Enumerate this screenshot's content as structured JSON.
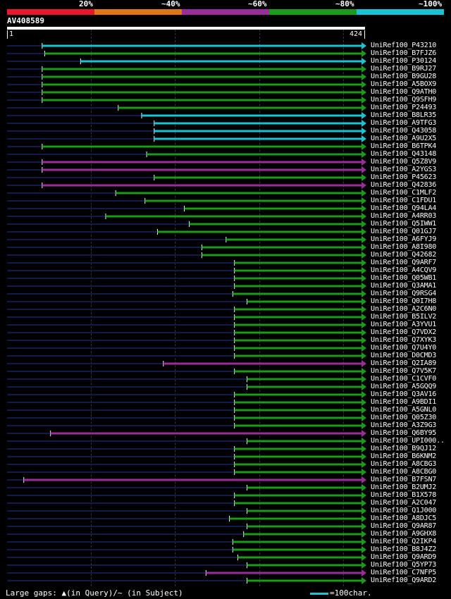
{
  "legend": {
    "items": [
      {
        "label": "20%",
        "color": "#e8172b"
      },
      {
        "label": "~40%",
        "color": "#e07617"
      },
      {
        "label": "~60%",
        "color": "#9b2d9b"
      },
      {
        "label": "~80%",
        "color": "#1a9c1a"
      },
      {
        "label": "~100%",
        "color": "#18c4d4"
      }
    ]
  },
  "query": {
    "name": "AV408589",
    "start_label": "1",
    "end_label": "424",
    "length": 424
  },
  "colors": {
    "background": "#000000",
    "faint_track": "#121a4a",
    "cyan": "#18c4d4",
    "green": "#1a9c1a",
    "purple": "#9b2d9b",
    "marker": "#ffff80"
  },
  "hits": [
    {
      "name": "UniRef100_P43210",
      "start": 42,
      "color": "cyan"
    },
    {
      "name": "UniRef100_B7FJZ6",
      "start": 45,
      "color": "green"
    },
    {
      "name": "UniRef100_P30124",
      "start": 88,
      "color": "cyan"
    },
    {
      "name": "UniRef100_B9RJ27",
      "start": 42,
      "color": "green"
    },
    {
      "name": "UniRef100_B9GU28",
      "start": 42,
      "color": "green"
    },
    {
      "name": "UniRef100_A5BOX9",
      "start": 42,
      "color": "green"
    },
    {
      "name": "UniRef100_Q9ATH0",
      "start": 42,
      "color": "green"
    },
    {
      "name": "UniRef100_Q9SFH9",
      "start": 42,
      "color": "green"
    },
    {
      "name": "UniRef100_P24493",
      "start": 133,
      "color": "green"
    },
    {
      "name": "UniRef100_B8LR35",
      "start": 161,
      "color": "cyan"
    },
    {
      "name": "UniRef100_A9TFG3",
      "start": 176,
      "color": "cyan"
    },
    {
      "name": "UniRef100_Q43058",
      "start": 176,
      "color": "cyan"
    },
    {
      "name": "UniRef100_A9U2X5",
      "start": 176,
      "color": "cyan"
    },
    {
      "name": "UniRef100_B6TPK4",
      "start": 42,
      "color": "green"
    },
    {
      "name": "UniRef100_Q43148",
      "start": 167,
      "color": "green"
    },
    {
      "name": "UniRef100_Q5Z8V9",
      "start": 42,
      "color": "purple"
    },
    {
      "name": "UniRef100_A2YGS3",
      "start": 42,
      "color": "purple"
    },
    {
      "name": "UniRef100_P45623",
      "start": 176,
      "color": "green"
    },
    {
      "name": "UniRef100_Q42836",
      "start": 42,
      "color": "purple"
    },
    {
      "name": "UniRef100_C1MLF2",
      "start": 130,
      "color": "green"
    },
    {
      "name": "UniRef100_C1FDU1",
      "start": 165,
      "color": "green"
    },
    {
      "name": "UniRef100_Q94LA4",
      "start": 212,
      "color": "green"
    },
    {
      "name": "UniRef100_A4RR03",
      "start": 118,
      "color": "green"
    },
    {
      "name": "UniRef100_Q5IWW1",
      "start": 218,
      "color": "green"
    },
    {
      "name": "UniRef100_Q01GJ7",
      "start": 180,
      "color": "green"
    },
    {
      "name": "UniRef100_A6FYJ9",
      "start": 262,
      "color": "green"
    },
    {
      "name": "UniRef100_A8I980",
      "start": 233,
      "color": "green"
    },
    {
      "name": "UniRef100_Q42682",
      "start": 233,
      "color": "green"
    },
    {
      "name": "UniRef100_Q9ARF7",
      "start": 272,
      "color": "green"
    },
    {
      "name": "UniRef100_A4CQV9",
      "start": 272,
      "color": "green"
    },
    {
      "name": "UniRef100_Q05WB1",
      "start": 272,
      "color": "green"
    },
    {
      "name": "UniRef100_Q3AMA1",
      "start": 272,
      "color": "green"
    },
    {
      "name": "UniRef100_Q9RSG4",
      "start": 270,
      "color": "green"
    },
    {
      "name": "UniRef100_Q0I7H8",
      "start": 287,
      "color": "green"
    },
    {
      "name": "UniRef100_A2C6N0",
      "start": 272,
      "color": "green"
    },
    {
      "name": "UniRef100_B5ILV2",
      "start": 272,
      "color": "green"
    },
    {
      "name": "UniRef100_A3YVU1",
      "start": 272,
      "color": "green"
    },
    {
      "name": "UniRef100_Q7VDX2",
      "start": 272,
      "color": "green"
    },
    {
      "name": "UniRef100_Q7XYK3",
      "start": 272,
      "color": "green"
    },
    {
      "name": "UniRef100_Q7U4Y0",
      "start": 272,
      "color": "green"
    },
    {
      "name": "UniRef100_D0CMD3",
      "start": 272,
      "color": "green"
    },
    {
      "name": "UniRef100_Q2IA89",
      "start": 187,
      "color": "purple"
    },
    {
      "name": "UniRef100_Q7V5K7",
      "start": 272,
      "color": "green"
    },
    {
      "name": "UniRef100_C1CVF0",
      "start": 287,
      "color": "green"
    },
    {
      "name": "UniRef100_A5GQQ9",
      "start": 287,
      "color": "green"
    },
    {
      "name": "UniRef100_Q3AV16",
      "start": 272,
      "color": "green"
    },
    {
      "name": "UniRef100_A9BDI1",
      "start": 272,
      "color": "green"
    },
    {
      "name": "UniRef100_A5GNL0",
      "start": 272,
      "color": "green"
    },
    {
      "name": "UniRef100_Q05Z30",
      "start": 272,
      "color": "green"
    },
    {
      "name": "UniRef100_A3Z9G3",
      "start": 272,
      "color": "green"
    },
    {
      "name": "UniRef100_Q6BY95",
      "start": 52,
      "color": "purple"
    },
    {
      "name": "UniRef100_UPI000..",
      "start": 287,
      "color": "green"
    },
    {
      "name": "UniRef100_B9QJ12",
      "start": 272,
      "color": "green"
    },
    {
      "name": "UniRef100_B6KNM2",
      "start": 272,
      "color": "green"
    },
    {
      "name": "UniRef100_A8CBG3",
      "start": 272,
      "color": "green"
    },
    {
      "name": "UniRef100_A8CBG0",
      "start": 272,
      "color": "green"
    },
    {
      "name": "UniRef100_B7FSN7",
      "start": 20,
      "color": "purple"
    },
    {
      "name": "UniRef100_B2UMJ2",
      "start": 287,
      "color": "green"
    },
    {
      "name": "UniRef100_B1X578",
      "start": 272,
      "color": "green"
    },
    {
      "name": "UniRef100_A2C047",
      "start": 272,
      "color": "green"
    },
    {
      "name": "UniRef100_Q1J000",
      "start": 287,
      "color": "green"
    },
    {
      "name": "UniRef100_A8DJC5",
      "start": 266,
      "color": "green"
    },
    {
      "name": "UniRef100_Q9AR87",
      "start": 287,
      "color": "green"
    },
    {
      "name": "UniRef100_A9GHX8",
      "start": 283,
      "color": "green"
    },
    {
      "name": "UniRef100_Q2IKP4",
      "start": 270,
      "color": "green"
    },
    {
      "name": "UniRef100_B8J4Z2",
      "start": 270,
      "color": "green"
    },
    {
      "name": "UniRef100_Q9ARD9",
      "start": 276,
      "color": "green"
    },
    {
      "name": "UniRef100_Q5YP73",
      "start": 287,
      "color": "green"
    },
    {
      "name": "UniRef100_C7NFP5",
      "start": 238,
      "color": "purple"
    },
    {
      "name": "UniRef100_Q9ARD2",
      "start": 287,
      "color": "green"
    }
  ],
  "footer": {
    "large_gaps_text": "Large gaps: ▲(in Query)/~ (in Subject)",
    "scale_text": "=100char."
  }
}
